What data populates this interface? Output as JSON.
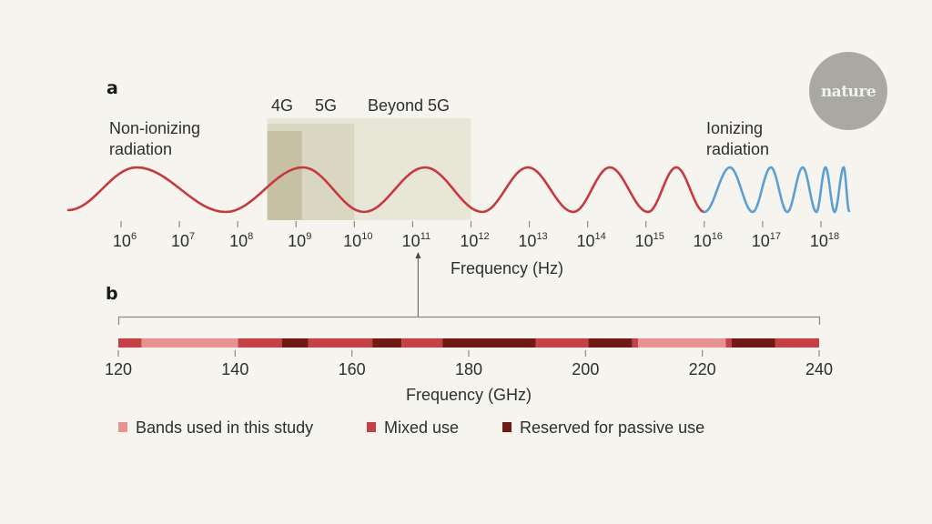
{
  "logo": {
    "text": "nature"
  },
  "panel_a": {
    "letter": "a",
    "labels": {
      "non_ionizing": [
        "Non-ionizing",
        "radiation"
      ],
      "ionizing": [
        "Ionizing",
        "radiation"
      ]
    },
    "bands": [
      {
        "name": "4G",
        "from_exp": 8.5,
        "to_exp": 9.1,
        "color": "#c6c1a4"
      },
      {
        "name": "5G",
        "from_exp": 8.5,
        "to_exp": 10.0,
        "color": "#d9d6c2"
      },
      {
        "name": "Beyond 5G",
        "from_exp": 8.5,
        "to_exp": 12.0,
        "color": "#e8e6d7"
      }
    ],
    "axis": {
      "title": "Frequency (Hz)",
      "base": "10",
      "exponents": [
        6,
        7,
        8,
        9,
        10,
        11,
        12,
        13,
        14,
        15,
        16,
        17,
        18
      ]
    },
    "wave": {
      "non_ionizing_color": "#c9383d",
      "ionizing_color": "#5b9fd6",
      "transition_exp": 16
    },
    "zoom_arrow_exp": 11
  },
  "panel_b": {
    "letter": "b",
    "axis": {
      "title": "Frequency (GHz)",
      "min": 120,
      "max": 240,
      "ticks": [
        120,
        140,
        160,
        180,
        200,
        220,
        240
      ]
    },
    "segments": [
      {
        "from": 120,
        "to": 124,
        "type": "mixed"
      },
      {
        "from": 124,
        "to": 140.5,
        "type": "study"
      },
      {
        "from": 140.5,
        "to": 148,
        "type": "mixed"
      },
      {
        "from": 148,
        "to": 152.5,
        "type": "passive"
      },
      {
        "from": 152.5,
        "to": 163.5,
        "type": "mixed"
      },
      {
        "from": 163.5,
        "to": 168.5,
        "type": "passive"
      },
      {
        "from": 168.5,
        "to": 175.5,
        "type": "mixed"
      },
      {
        "from": 175.5,
        "to": 191.5,
        "type": "passive"
      },
      {
        "from": 191.5,
        "to": 200.5,
        "type": "mixed"
      },
      {
        "from": 200.5,
        "to": 208,
        "type": "passive"
      },
      {
        "from": 208,
        "to": 209,
        "type": "mixed"
      },
      {
        "from": 209,
        "to": 224,
        "type": "study"
      },
      {
        "from": 224,
        "to": 225,
        "type": "mixed"
      },
      {
        "from": 225,
        "to": 232.5,
        "type": "passive"
      },
      {
        "from": 232.5,
        "to": 240,
        "type": "mixed"
      }
    ],
    "legend": [
      {
        "key": "study",
        "label": "Bands used in this study",
        "color": "#e99190"
      },
      {
        "key": "mixed",
        "label": "Mixed use",
        "color": "#c94044"
      },
      {
        "key": "passive",
        "label": "Reserved for passive use",
        "color": "#731914"
      }
    ]
  }
}
